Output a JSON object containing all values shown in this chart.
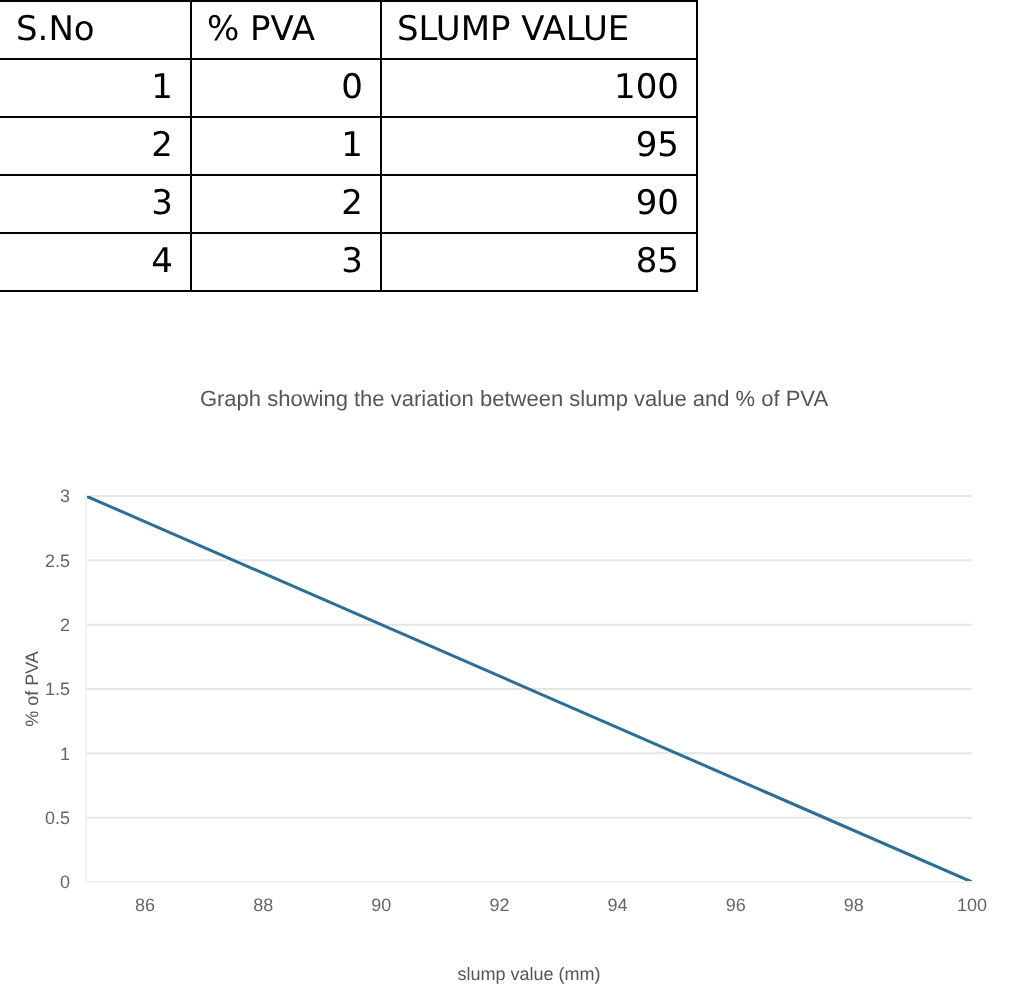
{
  "chart_data": {
    "type": "line",
    "title": "Graph showing the variation between slump value and   % of PVA",
    "xlabel": "slump value (mm)",
    "ylabel": "% of PVA",
    "annotations": [
      "S.No",
      "% PVA",
      "SLUMP VALUE",
      "1",
      "0",
      "100",
      "2",
      "1",
      "95",
      "3",
      "2",
      "90",
      "4",
      "3",
      "85"
    ],
    "x": [
      100,
      95,
      90,
      85
    ],
    "series": [
      {
        "color": "#2b6f99",
        "values": [
          0,
          1,
          2,
          3
        ]
      }
    ],
    "xlim": [
      85,
      100
    ],
    "xticks": [
      86,
      88,
      90,
      92,
      94,
      96,
      98,
      100
    ],
    "ylim": [
      0,
      3
    ],
    "yticks": [
      0,
      0.5,
      1,
      1.5,
      2,
      2.5,
      3
    ],
    "grid": "y",
    "marker": "none",
    "line_style": "solid"
  }
}
